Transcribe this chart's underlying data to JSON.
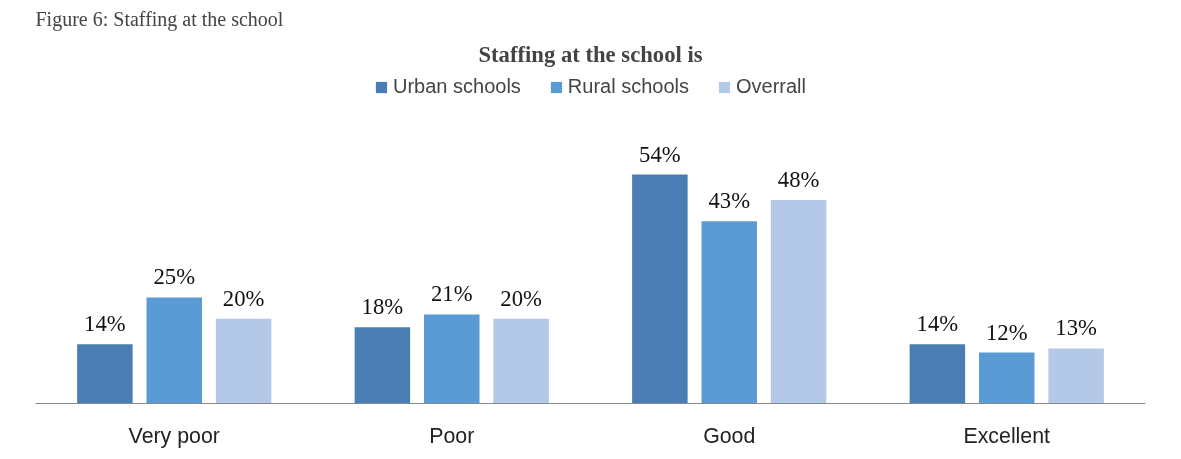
{
  "chart_data": {
    "type": "bar",
    "title": "Staffing at the school is",
    "annotations": [
      "Figure 6: Staffing at the school"
    ],
    "categories": [
      "Very poor",
      "Poor",
      "Good",
      "Excellent"
    ],
    "series": [
      {
        "name": "Urban schools",
        "color": "#4a7db3",
        "values": [
          14,
          18,
          54,
          14
        ],
        "value_labels": [
          "14%",
          "18%",
          "54%",
          "14%"
        ]
      },
      {
        "name": "Rural schools",
        "color": "#5b9bd5",
        "values": [
          25,
          21,
          43,
          12
        ],
        "value_labels": [
          "25%",
          "21%",
          "43%",
          "12%"
        ]
      },
      {
        "name": "Overrall",
        "color": "#b4c9e8",
        "values": [
          20,
          20,
          48,
          13
        ],
        "value_labels": [
          "20%",
          "20%",
          "48%",
          "13%"
        ]
      }
    ],
    "legend": "top",
    "grid": false
  }
}
